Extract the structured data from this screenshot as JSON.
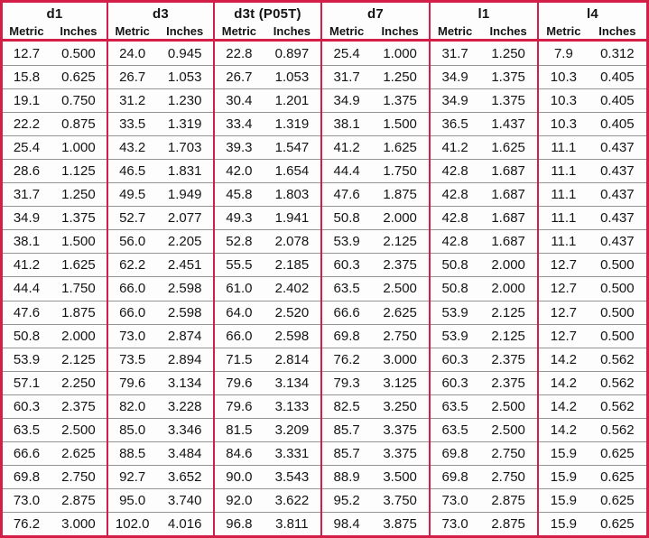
{
  "colors": {
    "border_red": "#d31e47",
    "row_line": "#949494",
    "text": "#141414"
  },
  "table": {
    "subheaders": [
      "Metric",
      "Inches"
    ],
    "groups": [
      {
        "title": "d1",
        "rows": [
          [
            "12.7",
            "0.500"
          ],
          [
            "15.8",
            "0.625"
          ],
          [
            "19.1",
            "0.750"
          ],
          [
            "22.2",
            "0.875"
          ],
          [
            "25.4",
            "1.000"
          ],
          [
            "28.6",
            "1.125"
          ],
          [
            "31.7",
            "1.250"
          ],
          [
            "34.9",
            "1.375"
          ],
          [
            "38.1",
            "1.500"
          ],
          [
            "41.2",
            "1.625"
          ],
          [
            "44.4",
            "1.750"
          ],
          [
            "47.6",
            "1.875"
          ],
          [
            "50.8",
            "2.000"
          ],
          [
            "53.9",
            "2.125"
          ],
          [
            "57.1",
            "2.250"
          ],
          [
            "60.3",
            "2.375"
          ],
          [
            "63.5",
            "2.500"
          ],
          [
            "66.6",
            "2.625"
          ],
          [
            "69.8",
            "2.750"
          ],
          [
            "73.0",
            "2.875"
          ],
          [
            "76.2",
            "3.000"
          ]
        ]
      },
      {
        "title": "d3",
        "rows": [
          [
            "24.0",
            "0.945"
          ],
          [
            "26.7",
            "1.053"
          ],
          [
            "31.2",
            "1.230"
          ],
          [
            "33.5",
            "1.319"
          ],
          [
            "43.2",
            "1.703"
          ],
          [
            "46.5",
            "1.831"
          ],
          [
            "49.5",
            "1.949"
          ],
          [
            "52.7",
            "2.077"
          ],
          [
            "56.0",
            "2.205"
          ],
          [
            "62.2",
            "2.451"
          ],
          [
            "66.0",
            "2.598"
          ],
          [
            "66.0",
            "2.598"
          ],
          [
            "73.0",
            "2.874"
          ],
          [
            "73.5",
            "2.894"
          ],
          [
            "79.6",
            "3.134"
          ],
          [
            "82.0",
            "3.228"
          ],
          [
            "85.0",
            "3.346"
          ],
          [
            "88.5",
            "3.484"
          ],
          [
            "92.7",
            "3.652"
          ],
          [
            "95.0",
            "3.740"
          ],
          [
            "102.0",
            "4.016"
          ]
        ]
      },
      {
        "title": "d3t (P05T)",
        "rows": [
          [
            "22.8",
            "0.897"
          ],
          [
            "26.7",
            "1.053"
          ],
          [
            "30.4",
            "1.201"
          ],
          [
            "33.4",
            "1.319"
          ],
          [
            "39.3",
            "1.547"
          ],
          [
            "42.0",
            "1.654"
          ],
          [
            "45.8",
            "1.803"
          ],
          [
            "49.3",
            "1.941"
          ],
          [
            "52.8",
            "2.078"
          ],
          [
            "55.5",
            "2.185"
          ],
          [
            "61.0",
            "2.402"
          ],
          [
            "64.0",
            "2.520"
          ],
          [
            "66.0",
            "2.598"
          ],
          [
            "71.5",
            "2.814"
          ],
          [
            "79.6",
            "3.134"
          ],
          [
            "79.6",
            "3.133"
          ],
          [
            "81.5",
            "3.209"
          ],
          [
            "84.6",
            "3.331"
          ],
          [
            "90.0",
            "3.543"
          ],
          [
            "92.0",
            "3.622"
          ],
          [
            "96.8",
            "3.811"
          ]
        ]
      },
      {
        "title": "d7",
        "rows": [
          [
            "25.4",
            "1.000"
          ],
          [
            "31.7",
            "1.250"
          ],
          [
            "34.9",
            "1.375"
          ],
          [
            "38.1",
            "1.500"
          ],
          [
            "41.2",
            "1.625"
          ],
          [
            "44.4",
            "1.750"
          ],
          [
            "47.6",
            "1.875"
          ],
          [
            "50.8",
            "2.000"
          ],
          [
            "53.9",
            "2.125"
          ],
          [
            "60.3",
            "2.375"
          ],
          [
            "63.5",
            "2.500"
          ],
          [
            "66.6",
            "2.625"
          ],
          [
            "69.8",
            "2.750"
          ],
          [
            "76.2",
            "3.000"
          ],
          [
            "79.3",
            "3.125"
          ],
          [
            "82.5",
            "3.250"
          ],
          [
            "85.7",
            "3.375"
          ],
          [
            "85.7",
            "3.375"
          ],
          [
            "88.9",
            "3.500"
          ],
          [
            "95.2",
            "3.750"
          ],
          [
            "98.4",
            "3.875"
          ]
        ]
      },
      {
        "title": "l1",
        "rows": [
          [
            "31.7",
            "1.250"
          ],
          [
            "34.9",
            "1.375"
          ],
          [
            "34.9",
            "1.375"
          ],
          [
            "36.5",
            "1.437"
          ],
          [
            "41.2",
            "1.625"
          ],
          [
            "42.8",
            "1.687"
          ],
          [
            "42.8",
            "1.687"
          ],
          [
            "42.8",
            "1.687"
          ],
          [
            "42.8",
            "1.687"
          ],
          [
            "50.8",
            "2.000"
          ],
          [
            "50.8",
            "2.000"
          ],
          [
            "53.9",
            "2.125"
          ],
          [
            "53.9",
            "2.125"
          ],
          [
            "60.3",
            "2.375"
          ],
          [
            "60.3",
            "2.375"
          ],
          [
            "63.5",
            "2.500"
          ],
          [
            "63.5",
            "2.500"
          ],
          [
            "69.8",
            "2.750"
          ],
          [
            "69.8",
            "2.750"
          ],
          [
            "73.0",
            "2.875"
          ],
          [
            "73.0",
            "2.875"
          ]
        ]
      },
      {
        "title": "l4",
        "rows": [
          [
            "7.9",
            "0.312"
          ],
          [
            "10.3",
            "0.405"
          ],
          [
            "10.3",
            "0.405"
          ],
          [
            "10.3",
            "0.405"
          ],
          [
            "11.1",
            "0.437"
          ],
          [
            "11.1",
            "0.437"
          ],
          [
            "11.1",
            "0.437"
          ],
          [
            "11.1",
            "0.437"
          ],
          [
            "11.1",
            "0.437"
          ],
          [
            "12.7",
            "0.500"
          ],
          [
            "12.7",
            "0.500"
          ],
          [
            "12.7",
            "0.500"
          ],
          [
            "12.7",
            "0.500"
          ],
          [
            "14.2",
            "0.562"
          ],
          [
            "14.2",
            "0.562"
          ],
          [
            "14.2",
            "0.562"
          ],
          [
            "14.2",
            "0.562"
          ],
          [
            "15.9",
            "0.625"
          ],
          [
            "15.9",
            "0.625"
          ],
          [
            "15.9",
            "0.625"
          ],
          [
            "15.9",
            "0.625"
          ]
        ]
      }
    ]
  }
}
